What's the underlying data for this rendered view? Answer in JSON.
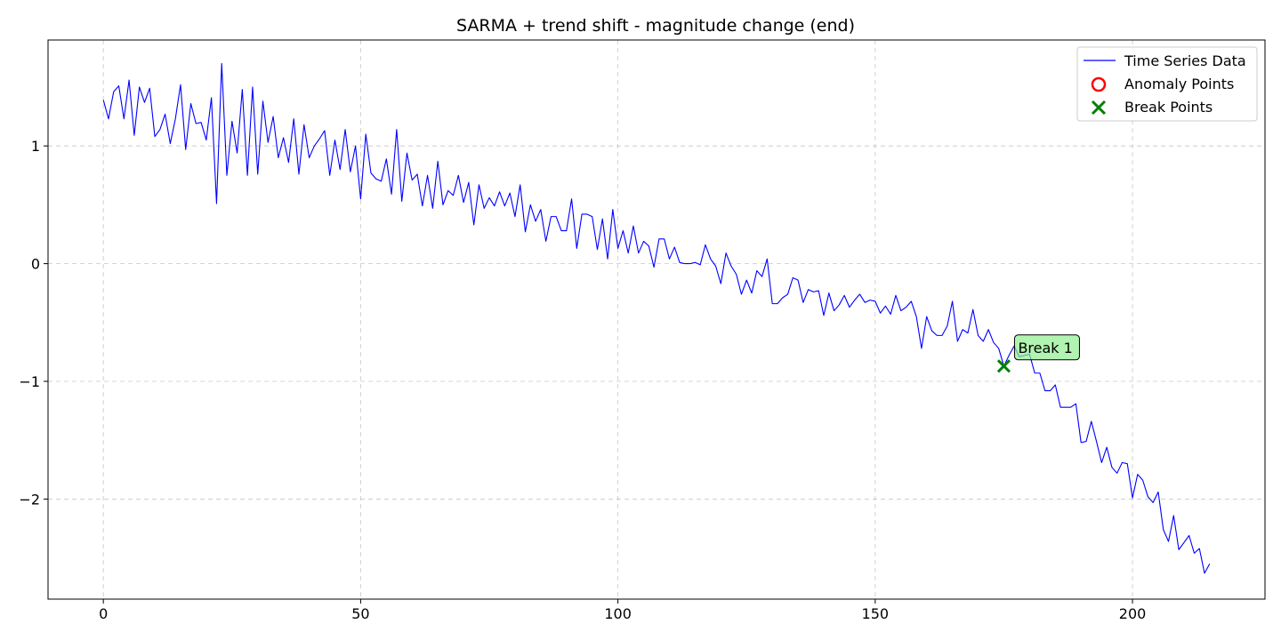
{
  "chart_data": {
    "type": "line",
    "title": "SARMA + trend shift - magnitude change (end)",
    "xlabel": "",
    "ylabel": "",
    "xlim": [
      -10.75,
      225.75
    ],
    "ylim": [
      -2.85,
      1.9
    ],
    "xticks": [
      0,
      50,
      100,
      150,
      200
    ],
    "yticks": [
      -2,
      -1,
      0,
      1
    ],
    "grid": true,
    "legend_position": "top-right",
    "legend": [
      {
        "name": "Time Series Data",
        "marker": "line",
        "color": "#0000ff"
      },
      {
        "name": "Anomaly Points",
        "marker": "circle",
        "color": "#ff0000"
      },
      {
        "name": "Break Points",
        "marker": "x",
        "color": "#008000"
      }
    ],
    "series": [
      {
        "name": "Time Series Data",
        "color": "#0000ff",
        "y": [
          1.39,
          1.23,
          1.46,
          1.51,
          1.23,
          1.56,
          1.09,
          1.5,
          1.37,
          1.49,
          1.08,
          1.14,
          1.27,
          1.02,
          1.23,
          1.52,
          0.97,
          1.36,
          1.19,
          1.2,
          1.05,
          1.41,
          0.51,
          1.7,
          0.75,
          1.21,
          0.94,
          1.48,
          0.75,
          1.5,
          0.76,
          1.38,
          1.03,
          1.25,
          0.9,
          1.07,
          0.86,
          1.23,
          0.76,
          1.18,
          0.9,
          1.0,
          1.06,
          1.13,
          0.75,
          1.05,
          0.8,
          1.14,
          0.78,
          1.0,
          0.55,
          1.1,
          0.77,
          0.72,
          0.7,
          0.89,
          0.59,
          1.14,
          0.53,
          0.94,
          0.71,
          0.76,
          0.49,
          0.75,
          0.47,
          0.87,
          0.5,
          0.62,
          0.58,
          0.75,
          0.52,
          0.69,
          0.33,
          0.67,
          0.47,
          0.56,
          0.49,
          0.61,
          0.49,
          0.6,
          0.4,
          0.67,
          0.27,
          0.5,
          0.36,
          0.46,
          0.19,
          0.4,
          0.4,
          0.28,
          0.28,
          0.55,
          0.13,
          0.42,
          0.42,
          0.4,
          0.12,
          0.38,
          0.04,
          0.46,
          0.13,
          0.28,
          0.09,
          0.32,
          0.09,
          0.19,
          0.15,
          -0.03,
          0.21,
          0.21,
          0.04,
          0.14,
          0.01,
          0.0,
          0.0,
          0.01,
          -0.01,
          0.16,
          0.04,
          -0.02,
          -0.17,
          0.09,
          -0.02,
          -0.09,
          -0.26,
          -0.14,
          -0.25,
          -0.06,
          -0.11,
          0.04,
          -0.34,
          -0.34,
          -0.29,
          -0.26,
          -0.12,
          -0.14,
          -0.33,
          -0.22,
          -0.24,
          -0.23,
          -0.44,
          -0.25,
          -0.4,
          -0.35,
          -0.27,
          -0.37,
          -0.31,
          -0.26,
          -0.33,
          -0.31,
          -0.32,
          -0.42,
          -0.36,
          -0.43,
          -0.27,
          -0.4,
          -0.37,
          -0.32,
          -0.45,
          -0.72,
          -0.45,
          -0.57,
          -0.61,
          -0.61,
          -0.53,
          -0.32,
          -0.66,
          -0.56,
          -0.59,
          -0.39,
          -0.61,
          -0.66,
          -0.56,
          -0.67,
          -0.72,
          -0.87,
          -0.78,
          -0.7,
          -0.79,
          -0.78,
          -0.77,
          -0.93,
          -0.93,
          -1.08,
          -1.08,
          -1.03,
          -1.22,
          -1.22,
          -1.22,
          -1.19,
          -1.52,
          -1.51,
          -1.34,
          -1.51,
          -1.69,
          -1.56,
          -1.73,
          -1.78,
          -1.69,
          -1.7,
          -1.99,
          -1.79,
          -1.84,
          -1.98,
          -2.03,
          -1.94,
          -2.26,
          -2.36,
          -2.14,
          -2.43,
          -2.37,
          -2.31,
          -2.46,
          -2.42,
          -2.63,
          -2.55
        ]
      }
    ],
    "break_points": [
      {
        "x": 175,
        "y": -0.87
      }
    ],
    "anomaly_points": [],
    "annotations": [
      {
        "text": "Break 1",
        "x": 175,
        "y": -0.87
      }
    ]
  }
}
